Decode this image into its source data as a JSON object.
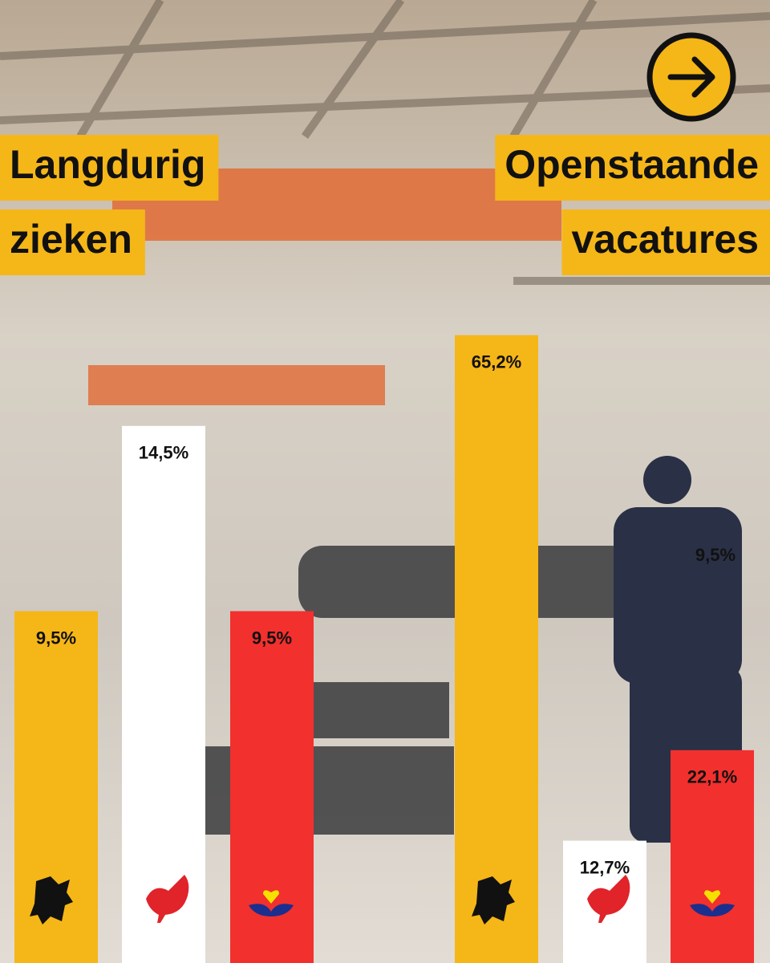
{
  "chart_data": [
    {
      "type": "bar",
      "title_lines": [
        "Langdurig",
        "zieken"
      ],
      "categories": [
        null,
        null,
        null
      ],
      "values": [
        9.5,
        14.5,
        9.5
      ],
      "value_labels": [
        "9,5%",
        "14,5%",
        "9,5%"
      ],
      "colors": [
        "#f5b618",
        "#ffffff",
        "#f2302e"
      ],
      "ylim": [
        0,
        26
      ]
    },
    {
      "type": "bar",
      "title_lines": [
        "Openstaande",
        "vacatures"
      ],
      "categories": [
        null,
        null,
        null
      ],
      "values": [
        65.2,
        12.7,
        22.1
      ],
      "value_labels": [
        "65,2%",
        "12,7%",
        "22,1%"
      ],
      "colors": [
        "#f5b618",
        "#ffffff",
        "#f2302e"
      ],
      "ylim": [
        0,
        100
      ],
      "annotation": "9,5%"
    }
  ]
}
